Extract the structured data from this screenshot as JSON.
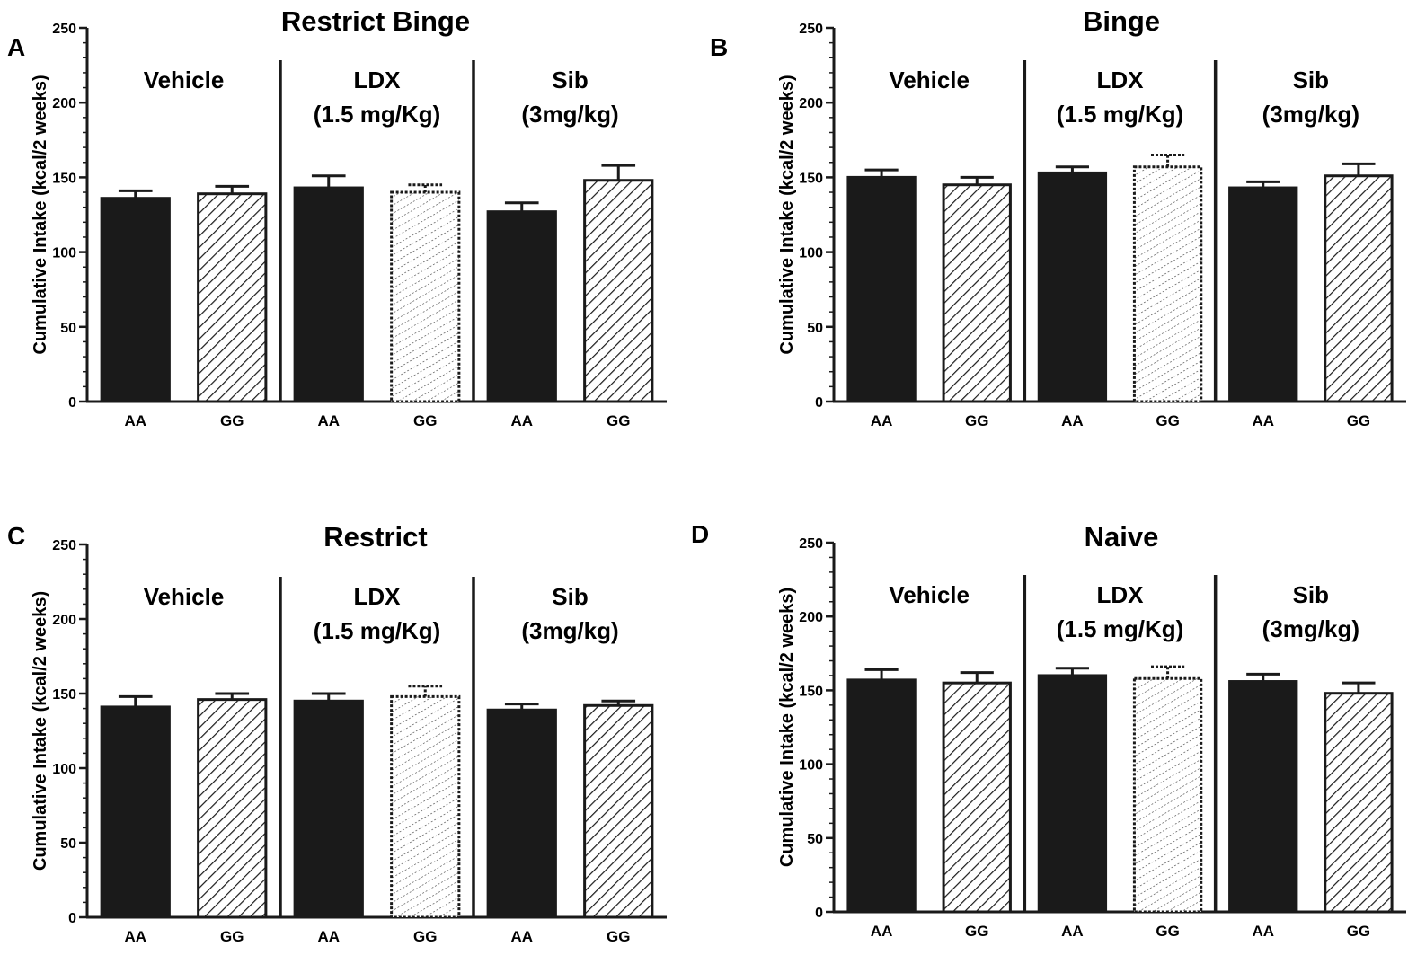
{
  "figure": {
    "colors": {
      "bar_dark": "#1a1a1a",
      "axis": "#1a1a1a",
      "background": "#ffffff"
    }
  },
  "chart_data": [
    {
      "panel": "A",
      "type": "bar",
      "title": "Restrict Binge",
      "ylabel": "Cumulative Intake (kcal/2 weeks)",
      "xlabel": "",
      "ylim": [
        0,
        250
      ],
      "yticks": [
        0,
        50,
        100,
        150,
        200,
        250
      ],
      "groups": [
        {
          "label_lines": [
            "Vehicle"
          ],
          "categories": [
            "AA",
            "GG"
          ],
          "values": [
            136,
            139
          ],
          "errors": [
            5,
            5
          ],
          "styles": [
            "solid",
            "hatch"
          ]
        },
        {
          "label_lines": [
            "LDX",
            "(1.5 mg/Kg)"
          ],
          "categories": [
            "AA",
            "GG"
          ],
          "values": [
            143,
            140
          ],
          "errors": [
            8,
            5
          ],
          "styles": [
            "solid",
            "dotted"
          ]
        },
        {
          "label_lines": [
            "Sib",
            "(3mg/kg)"
          ],
          "categories": [
            "AA",
            "GG"
          ],
          "values": [
            127,
            148
          ],
          "errors": [
            6,
            10
          ],
          "styles": [
            "solid",
            "hatch"
          ]
        }
      ]
    },
    {
      "panel": "B",
      "type": "bar",
      "title": "Binge",
      "ylabel": "Cumulative Intake (kcal/2 weeks)",
      "xlabel": "",
      "ylim": [
        0,
        250
      ],
      "yticks": [
        0,
        50,
        100,
        150,
        200,
        250
      ],
      "groups": [
        {
          "label_lines": [
            "Vehicle"
          ],
          "categories": [
            "AA",
            "GG"
          ],
          "values": [
            150,
            145
          ],
          "errors": [
            5,
            5
          ],
          "styles": [
            "solid",
            "hatch"
          ]
        },
        {
          "label_lines": [
            "LDX",
            "(1.5 mg/Kg)"
          ],
          "categories": [
            "AA",
            "GG"
          ],
          "values": [
            153,
            157
          ],
          "errors": [
            4,
            8
          ],
          "styles": [
            "solid",
            "dotted"
          ]
        },
        {
          "label_lines": [
            "Sib",
            "(3mg/kg)"
          ],
          "categories": [
            "AA",
            "GG"
          ],
          "values": [
            143,
            151
          ],
          "errors": [
            4,
            8
          ],
          "styles": [
            "solid",
            "hatch"
          ]
        }
      ]
    },
    {
      "panel": "C",
      "type": "bar",
      "title": "Restrict",
      "ylabel": "Cumulative Intake (kcal/2 weeks)",
      "xlabel": "",
      "ylim": [
        0,
        250
      ],
      "yticks": [
        0,
        50,
        100,
        150,
        200,
        250
      ],
      "groups": [
        {
          "label_lines": [
            "Vehicle"
          ],
          "categories": [
            "AA",
            "GG"
          ],
          "values": [
            141,
            146
          ],
          "errors": [
            7,
            4
          ],
          "styles": [
            "solid",
            "hatch"
          ]
        },
        {
          "label_lines": [
            "LDX",
            "(1.5 mg/Kg)"
          ],
          "categories": [
            "AA",
            "GG"
          ],
          "values": [
            145,
            148
          ],
          "errors": [
            5,
            7
          ],
          "styles": [
            "solid",
            "dotted"
          ]
        },
        {
          "label_lines": [
            "Sib",
            "(3mg/kg)"
          ],
          "categories": [
            "AA",
            "GG"
          ],
          "values": [
            139,
            142
          ],
          "errors": [
            4,
            3
          ],
          "styles": [
            "solid",
            "hatch"
          ]
        }
      ]
    },
    {
      "panel": "D",
      "type": "bar",
      "title": "Naive",
      "ylabel": "Cumulative Intake (kcal/2 weeks)",
      "xlabel": "",
      "ylim": [
        0,
        250
      ],
      "yticks": [
        0,
        50,
        100,
        150,
        200,
        250
      ],
      "groups": [
        {
          "label_lines": [
            "Vehicle"
          ],
          "categories": [
            "AA",
            "GG"
          ],
          "values": [
            157,
            155
          ],
          "errors": [
            7,
            7
          ],
          "styles": [
            "solid",
            "hatch"
          ]
        },
        {
          "label_lines": [
            "LDX",
            "(1.5 mg/Kg)"
          ],
          "categories": [
            "AA",
            "GG"
          ],
          "values": [
            160,
            158
          ],
          "errors": [
            5,
            8
          ],
          "styles": [
            "solid",
            "dotted"
          ]
        },
        {
          "label_lines": [
            "Sib",
            "(3mg/kg)"
          ],
          "categories": [
            "AA",
            "GG"
          ],
          "values": [
            156,
            148
          ],
          "errors": [
            5,
            7
          ],
          "styles": [
            "solid",
            "hatch"
          ]
        }
      ]
    }
  ]
}
